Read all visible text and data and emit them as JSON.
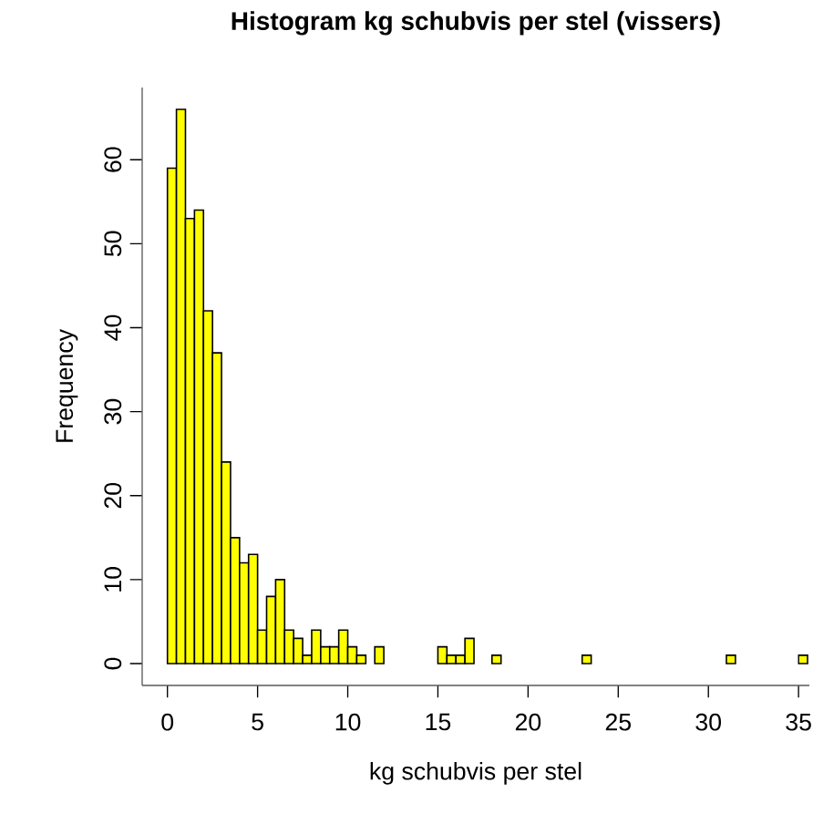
{
  "chart_data": {
    "type": "histogram",
    "title": "Histogram kg schubvis per stel (vissers)",
    "xlabel": "kg schubvis per stel",
    "ylabel": "Frequency",
    "bins": [
      0,
      0.5,
      1,
      1.5,
      2,
      2.5,
      3,
      3.5,
      4,
      4.5,
      5,
      5.5,
      6,
      6.5,
      7,
      7.5,
      8,
      8.5,
      9,
      9.5,
      10,
      10.5,
      11,
      11.5,
      12,
      12.5,
      13,
      13.5,
      14,
      14.5,
      15,
      15.5,
      16,
      16.5,
      17,
      17.5,
      18,
      18.5,
      19,
      19.5,
      20,
      20.5,
      21,
      21.5,
      22,
      22.5,
      23,
      23.5,
      24,
      24.5,
      25,
      25.5,
      26,
      26.5,
      27,
      27.5,
      28,
      28.5,
      29,
      29.5,
      30,
      30.5,
      31,
      31.5,
      32,
      32.5,
      33,
      33.5,
      34,
      34.5,
      35,
      35.5
    ],
    "values": [
      59,
      66,
      53,
      54,
      42,
      37,
      24,
      15,
      12,
      13,
      4,
      8,
      10,
      4,
      3,
      1,
      4,
      2,
      2,
      4,
      2,
      1,
      0,
      2,
      0,
      0,
      0,
      0,
      0,
      0,
      2,
      1,
      1,
      3,
      0,
      0,
      1,
      0,
      0,
      0,
      0,
      0,
      0,
      0,
      0,
      0,
      1,
      0,
      0,
      0,
      0,
      0,
      0,
      0,
      0,
      0,
      0,
      0,
      0,
      0,
      0,
      0,
      1,
      0,
      0,
      0,
      0,
      0,
      0,
      0,
      1
    ],
    "color": "#ffff00",
    "xlim": [
      -1.4,
      35.6
    ],
    "ylim": [
      -2.6,
      68.6
    ],
    "xticks": [
      0,
      5,
      10,
      15,
      20,
      25,
      30,
      35
    ],
    "yticks": [
      0,
      10,
      20,
      30,
      40,
      50,
      60
    ]
  }
}
